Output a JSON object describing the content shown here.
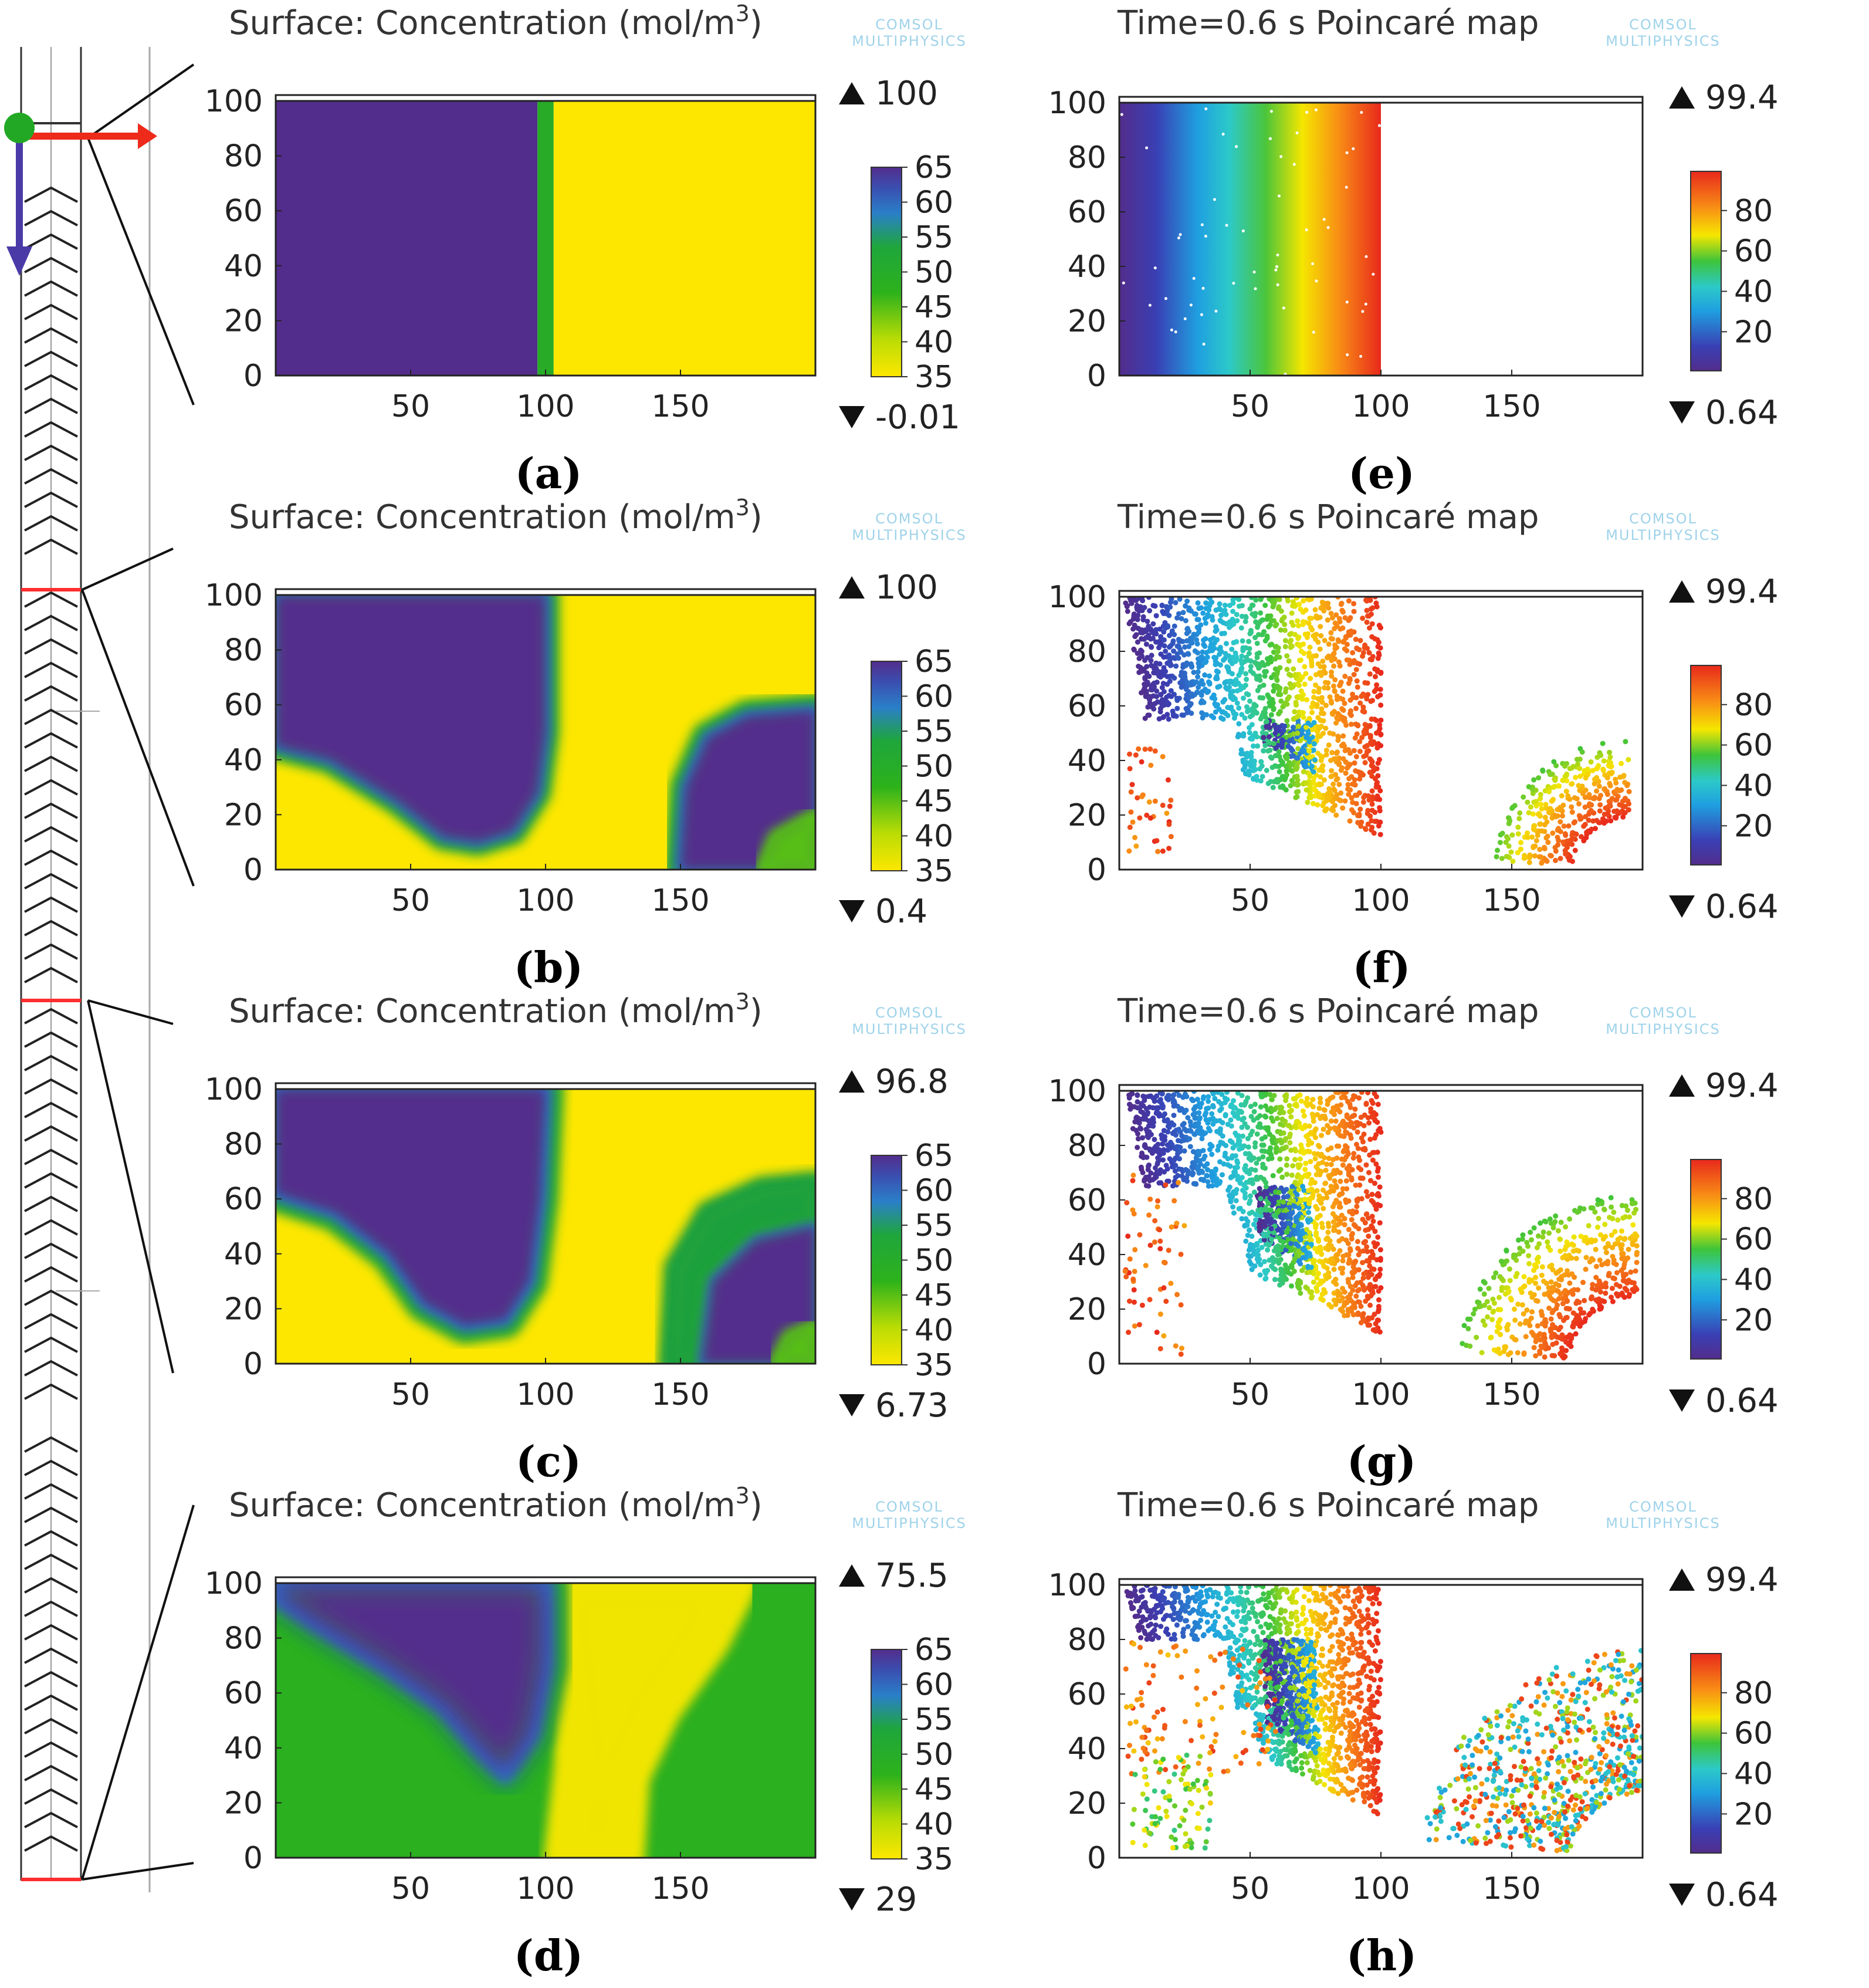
{
  "watermark": {
    "line1": "COMSOL",
    "line2": "MULTIPHYSICS"
  },
  "colors": {
    "purple": "#532d8c",
    "yellow": "#fde700",
    "green": "#21a51d",
    "blue": "#2a60c7",
    "red": "#e8291c",
    "orange": "#f88d15",
    "cyan": "#2bc6e0",
    "frame": "#222222",
    "mixer_red": "#ff2d2d"
  },
  "mixer_schematic": {
    "description_label": ""
  },
  "chart_data": [
    {
      "id": "a",
      "type": "heatmap",
      "title": "Surface: Concentration (mol/m",
      "title_sup": "3",
      "title_end": ")",
      "panel_label": "(a)",
      "xticks": [
        "50",
        "100",
        "150"
      ],
      "yticks": [
        "0",
        "20",
        "40",
        "60",
        "80",
        "100"
      ],
      "xlim": [
        0,
        200
      ],
      "ylim": [
        0,
        100
      ],
      "max_label": "100",
      "min_label": "-0.01",
      "colorbar": {
        "ticks": [
          "65",
          "60",
          "55",
          "50",
          "45",
          "40",
          "35"
        ],
        "range": [
          35,
          65
        ],
        "scheme": "concentration"
      },
      "regions": [
        {
          "shape": "rect",
          "x": [
            0,
            97
          ],
          "y": [
            0,
            100
          ],
          "value": 100
        },
        {
          "shape": "rect",
          "x": [
            97,
            103
          ],
          "y": [
            0,
            100
          ],
          "value": 50
        },
        {
          "shape": "rect",
          "x": [
            103,
            200
          ],
          "y": [
            0,
            100
          ],
          "value": 0
        }
      ]
    },
    {
      "id": "b",
      "type": "heatmap",
      "title": "Surface: Concentration (mol/m",
      "title_sup": "3",
      "title_end": ")",
      "panel_label": "(b)",
      "xticks": [
        "50",
        "100",
        "150"
      ],
      "yticks": [
        "0",
        "20",
        "40",
        "60",
        "80",
        "100"
      ],
      "xlim": [
        0,
        200
      ],
      "ylim": [
        0,
        100
      ],
      "max_label": "100",
      "min_label": "0.4",
      "colorbar": {
        "ticks": [
          "65",
          "60",
          "55",
          "50",
          "45",
          "40",
          "35"
        ],
        "range": [
          35,
          65
        ],
        "scheme": "concentration"
      },
      "background_value": 0,
      "blobs": [
        {
          "points": [
            [
              0,
              45
            ],
            [
              20,
              40
            ],
            [
              45,
              25
            ],
            [
              62,
              12
            ],
            [
              75,
              10
            ],
            [
              88,
              14
            ],
            [
              97,
              28
            ],
            [
              100,
              50
            ],
            [
              100,
              100
            ],
            [
              0,
              100
            ]
          ],
          "value": 100,
          "halo": 6
        },
        {
          "points": [
            [
              150,
              0
            ],
            [
              152,
              30
            ],
            [
              160,
              48
            ],
            [
              175,
              56
            ],
            [
              200,
              58
            ],
            [
              200,
              0
            ]
          ],
          "value": 100,
          "halo": 7
        },
        {
          "points": [
            [
              180,
              0
            ],
            [
              185,
              12
            ],
            [
              200,
              20
            ],
            [
              200,
              0
            ]
          ],
          "value": 45,
          "halo": 3
        }
      ]
    },
    {
      "id": "c",
      "type": "heatmap",
      "title": "Surface: Concentration (mol/m",
      "title_sup": "3",
      "title_end": ")",
      "panel_label": "(c)",
      "xticks": [
        "50",
        "100",
        "150"
      ],
      "yticks": [
        "0",
        "20",
        "40",
        "60",
        "80",
        "100"
      ],
      "xlim": [
        0,
        200
      ],
      "ylim": [
        0,
        100
      ],
      "max_label": "96.8",
      "min_label": "6.73",
      "colorbar": {
        "ticks": [
          "65",
          "60",
          "55",
          "50",
          "45",
          "40",
          "35"
        ],
        "range": [
          35,
          65
        ],
        "scheme": "concentration"
      },
      "background_value": 0,
      "blobs": [
        {
          "points": [
            [
              0,
              62
            ],
            [
              22,
              55
            ],
            [
              42,
              40
            ],
            [
              55,
              22
            ],
            [
              70,
              14
            ],
            [
              85,
              16
            ],
            [
              94,
              30
            ],
            [
              98,
              60
            ],
            [
              100,
              100
            ],
            [
              0,
              100
            ]
          ],
          "value": 100,
          "halo": 8
        },
        {
          "points": [
            [
              146,
              0
            ],
            [
              148,
              35
            ],
            [
              160,
              55
            ],
            [
              180,
              64
            ],
            [
              200,
              66
            ],
            [
              200,
              0
            ]
          ],
          "value": 55,
          "halo": 5
        },
        {
          "points": [
            [
              158,
              0
            ],
            [
              162,
              30
            ],
            [
              178,
              45
            ],
            [
              200,
              50
            ],
            [
              200,
              0
            ]
          ],
          "value": 100,
          "halo": 5
        },
        {
          "points": [
            [
              185,
              0
            ],
            [
              190,
              10
            ],
            [
              200,
              14
            ],
            [
              200,
              0
            ]
          ],
          "value": 45,
          "halo": 3
        }
      ]
    },
    {
      "id": "d",
      "type": "heatmap",
      "title": "Surface: Concentration (mol/m",
      "title_sup": "3",
      "title_end": ")",
      "panel_label": "(d)",
      "xticks": [
        "50",
        "100",
        "150"
      ],
      "yticks": [
        "0",
        "20",
        "40",
        "60",
        "80",
        "100"
      ],
      "xlim": [
        0,
        200
      ],
      "ylim": [
        0,
        100
      ],
      "max_label": "75.5",
      "min_label": "29",
      "colorbar": {
        "ticks": [
          "65",
          "60",
          "55",
          "50",
          "45",
          "40",
          "35"
        ],
        "range": [
          35,
          65
        ],
        "scheme": "concentration"
      },
      "background_value": 48,
      "blobs": [
        {
          "points": [
            [
              108,
              0
            ],
            [
              112,
              35
            ],
            [
              108,
              70
            ],
            [
              104,
              100
            ],
            [
              170,
              100
            ],
            [
              160,
              80
            ],
            [
              142,
              55
            ],
            [
              130,
              30
            ],
            [
              128,
              0
            ]
          ],
          "value": 36,
          "halo": 10
        },
        {
          "points": [
            [
              0,
              95
            ],
            [
              15,
              85
            ],
            [
              40,
              70
            ],
            [
              62,
              55
            ],
            [
              75,
              40
            ],
            [
              85,
              30
            ],
            [
              95,
              45
            ],
            [
              100,
              70
            ],
            [
              100,
              100
            ],
            [
              0,
              100
            ]
          ],
          "value": 100,
          "halo": 10
        }
      ]
    },
    {
      "id": "e",
      "type": "scatter",
      "title": "Time=0.6 s  Poincaré map",
      "panel_label": "(e)",
      "xticks": [
        "50",
        "100",
        "150"
      ],
      "yticks": [
        "0",
        "20",
        "40",
        "60",
        "80",
        "100"
      ],
      "xlim": [
        0,
        200
      ],
      "ylim": [
        0,
        100
      ],
      "max_label": "99.4",
      "min_label": "0.64",
      "colorbar": {
        "ticks": [
          "80",
          "60",
          "40",
          "20"
        ],
        "range": [
          0.64,
          99.4
        ],
        "scheme": "rainbow"
      },
      "sets": [
        {
          "kind": "band",
          "x": [
            0,
            100
          ],
          "y": [
            0,
            100
          ],
          "color_by": "x",
          "count": 0
        }
      ]
    },
    {
      "id": "f",
      "type": "scatter",
      "title": "Time=0.6 s  Poincaré map",
      "panel_label": "(f)",
      "xticks": [
        "50",
        "100",
        "150"
      ],
      "yticks": [
        "0",
        "20",
        "40",
        "60",
        "80",
        "100"
      ],
      "xlim": [
        0,
        200
      ],
      "ylim": [
        0,
        100
      ],
      "max_label": "99.4",
      "min_label": "0.64",
      "colorbar": {
        "ticks": [
          "80",
          "60",
          "40",
          "20"
        ],
        "range": [
          0.64,
          99.4
        ],
        "scheme": "rainbow"
      },
      "sets": [
        {
          "kind": "plume",
          "tilt": 28,
          "ybot": 55,
          "tip": [
            52,
            12
          ],
          "count": 1700,
          "seed": 11
        },
        {
          "kind": "arc",
          "center": [
            195,
            0
          ],
          "r": [
            20,
            50
          ],
          "count": 360,
          "seed": 21
        },
        {
          "kind": "sparse",
          "x": [
            2,
            20
          ],
          "y": [
            5,
            45
          ],
          "color": 90,
          "count": 40,
          "seed": 31
        }
      ]
    },
    {
      "id": "g",
      "type": "scatter",
      "title": "Time=0.6 s  Poincaré map",
      "panel_label": "(g)",
      "xticks": [
        "50",
        "100",
        "150"
      ],
      "yticks": [
        "0",
        "20",
        "40",
        "60",
        "80",
        "100"
      ],
      "xlim": [
        0,
        200
      ],
      "ylim": [
        0,
        100
      ],
      "max_label": "99.4",
      "min_label": "0.64",
      "colorbar": {
        "ticks": [
          "80",
          "60",
          "40",
          "20"
        ],
        "range": [
          0.64,
          99.4
        ],
        "scheme": "rainbow"
      },
      "sets": [
        {
          "kind": "plume",
          "tilt": 36,
          "ybot": 65,
          "tip": [
            50,
            10
          ],
          "count": 1800,
          "seed": 12
        },
        {
          "kind": "arc",
          "center": [
            198,
            0
          ],
          "r": [
            25,
            65
          ],
          "count": 520,
          "seed": 22
        },
        {
          "kind": "sparse",
          "x": [
            2,
            25
          ],
          "y": [
            2,
            70
          ],
          "color": 90,
          "count": 60,
          "seed": 32
        }
      ]
    },
    {
      "id": "h",
      "type": "scatter",
      "title": "Time=0.6 s  Poincaré map",
      "panel_label": "(h)",
      "xticks": [
        "50",
        "100",
        "150"
      ],
      "yticks": [
        "0",
        "20",
        "40",
        "60",
        "80",
        "100"
      ],
      "xlim": [
        0,
        200
      ],
      "ylim": [
        0,
        100
      ],
      "max_label": "99.4",
      "min_label": "0.64",
      "colorbar": {
        "ticks": [
          "80",
          "60",
          "40",
          "20"
        ],
        "range": [
          0.64,
          99.4
        ],
        "scheme": "rainbow"
      },
      "sets": [
        {
          "kind": "plume",
          "tilt": 48,
          "ybot": 80,
          "tip": [
            52,
            15
          ],
          "count": 1800,
          "seed": 13
        },
        {
          "kind": "arc",
          "center": [
            200,
            0
          ],
          "r": [
            25,
            80
          ],
          "count": 700,
          "seed": 23,
          "mix": true
        },
        {
          "kind": "sparse",
          "x": [
            2,
            60
          ],
          "y": [
            30,
            80
          ],
          "color": 85,
          "count": 110,
          "seed": 33
        },
        {
          "kind": "sparse",
          "x": [
            5,
            35
          ],
          "y": [
            2,
            38
          ],
          "color": 60,
          "count": 90,
          "seed": 34
        }
      ]
    }
  ]
}
